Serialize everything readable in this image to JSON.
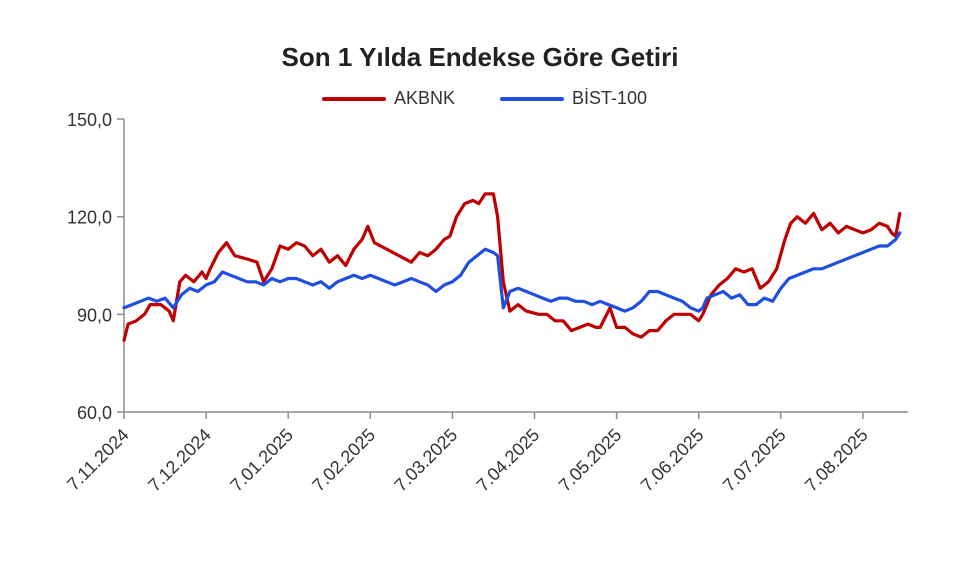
{
  "chart_data": {
    "type": "line",
    "title": "Son 1 Yılda Endekse Göre Getiri",
    "xlabel": "",
    "ylabel": "",
    "ylim": [
      60,
      150
    ],
    "yticks": [
      "150,0",
      "120,0",
      "90,0",
      "60,0"
    ],
    "ytick_values": [
      150,
      120,
      90,
      60
    ],
    "xtick_labels": [
      "7.11.2024",
      "7.12.2024",
      "7.01.2025",
      "7.02.2025",
      "7.03.2025",
      "7.04.2025",
      "7.05.2025",
      "7.06.2025",
      "7.07.2025",
      "7.08.2025"
    ],
    "x_month_range": [
      0,
      9.45
    ],
    "grid": false,
    "legend_position": "top-center",
    "series": [
      {
        "name": "AKBNK",
        "color": "#C00000",
        "points": [
          [
            0.0,
            82
          ],
          [
            0.05,
            87
          ],
          [
            0.15,
            88
          ],
          [
            0.25,
            90
          ],
          [
            0.32,
            93
          ],
          [
            0.45,
            93
          ],
          [
            0.55,
            91
          ],
          [
            0.6,
            88
          ],
          [
            0.68,
            100
          ],
          [
            0.75,
            102
          ],
          [
            0.85,
            100
          ],
          [
            0.95,
            103
          ],
          [
            1.0,
            101
          ],
          [
            1.05,
            104
          ],
          [
            1.15,
            109
          ],
          [
            1.25,
            112
          ],
          [
            1.35,
            108
          ],
          [
            1.5,
            107
          ],
          [
            1.62,
            106
          ],
          [
            1.7,
            100
          ],
          [
            1.8,
            104
          ],
          [
            1.9,
            111
          ],
          [
            2.0,
            110
          ],
          [
            2.1,
            112
          ],
          [
            2.2,
            111
          ],
          [
            2.3,
            108
          ],
          [
            2.4,
            110
          ],
          [
            2.5,
            106
          ],
          [
            2.6,
            108
          ],
          [
            2.7,
            105
          ],
          [
            2.8,
            110
          ],
          [
            2.9,
            113
          ],
          [
            2.97,
            117
          ],
          [
            3.05,
            112
          ],
          [
            3.2,
            110
          ],
          [
            3.35,
            108
          ],
          [
            3.5,
            106
          ],
          [
            3.6,
            109
          ],
          [
            3.7,
            108
          ],
          [
            3.8,
            110
          ],
          [
            3.9,
            113
          ],
          [
            3.97,
            114
          ],
          [
            4.05,
            120
          ],
          [
            4.15,
            124
          ],
          [
            4.25,
            125
          ],
          [
            4.32,
            124
          ],
          [
            4.4,
            127
          ],
          [
            4.5,
            127
          ],
          [
            4.55,
            120
          ],
          [
            4.62,
            100
          ],
          [
            4.7,
            91
          ],
          [
            4.8,
            93
          ],
          [
            4.9,
            91
          ],
          [
            5.05,
            90
          ],
          [
            5.15,
            90
          ],
          [
            5.25,
            88
          ],
          [
            5.35,
            88
          ],
          [
            5.45,
            85
          ],
          [
            5.55,
            86
          ],
          [
            5.65,
            87
          ],
          [
            5.75,
            86
          ],
          [
            5.8,
            86
          ],
          [
            5.92,
            92
          ],
          [
            6.0,
            86
          ],
          [
            6.1,
            86
          ],
          [
            6.2,
            84
          ],
          [
            6.3,
            83
          ],
          [
            6.4,
            85
          ],
          [
            6.5,
            85
          ],
          [
            6.6,
            88
          ],
          [
            6.7,
            90
          ],
          [
            6.8,
            90
          ],
          [
            6.9,
            90
          ],
          [
            6.95,
            89
          ],
          [
            7.0,
            88
          ],
          [
            7.05,
            90
          ],
          [
            7.15,
            96
          ],
          [
            7.25,
            99
          ],
          [
            7.35,
            101
          ],
          [
            7.45,
            104
          ],
          [
            7.55,
            103
          ],
          [
            7.65,
            104
          ],
          [
            7.75,
            98
          ],
          [
            7.85,
            100
          ],
          [
            7.95,
            104
          ],
          [
            8.05,
            113
          ],
          [
            8.12,
            118
          ],
          [
            8.2,
            120
          ],
          [
            8.3,
            118
          ],
          [
            8.4,
            121
          ],
          [
            8.5,
            116
          ],
          [
            8.6,
            118
          ],
          [
            8.7,
            115
          ],
          [
            8.8,
            117
          ],
          [
            8.9,
            116
          ],
          [
            9.0,
            115
          ],
          [
            9.1,
            116
          ],
          [
            9.2,
            118
          ],
          [
            9.3,
            117
          ],
          [
            9.35,
            115
          ],
          [
            9.4,
            114
          ],
          [
            9.45,
            121
          ]
        ]
      },
      {
        "name": "BİST-100",
        "color": "#1F4FE0",
        "points": [
          [
            0.0,
            92
          ],
          [
            0.1,
            93
          ],
          [
            0.2,
            94
          ],
          [
            0.3,
            95
          ],
          [
            0.4,
            94
          ],
          [
            0.5,
            95
          ],
          [
            0.6,
            92
          ],
          [
            0.7,
            96
          ],
          [
            0.8,
            98
          ],
          [
            0.9,
            97
          ],
          [
            1.0,
            99
          ],
          [
            1.1,
            100
          ],
          [
            1.2,
            103
          ],
          [
            1.3,
            102
          ],
          [
            1.4,
            101
          ],
          [
            1.5,
            100
          ],
          [
            1.6,
            100
          ],
          [
            1.7,
            99
          ],
          [
            1.8,
            101
          ],
          [
            1.9,
            100
          ],
          [
            2.0,
            101
          ],
          [
            2.1,
            101
          ],
          [
            2.2,
            100
          ],
          [
            2.3,
            99
          ],
          [
            2.4,
            100
          ],
          [
            2.5,
            98
          ],
          [
            2.6,
            100
          ],
          [
            2.7,
            101
          ],
          [
            2.8,
            102
          ],
          [
            2.9,
            101
          ],
          [
            3.0,
            102
          ],
          [
            3.1,
            101
          ],
          [
            3.2,
            100
          ],
          [
            3.3,
            99
          ],
          [
            3.4,
            100
          ],
          [
            3.5,
            101
          ],
          [
            3.6,
            100
          ],
          [
            3.7,
            99
          ],
          [
            3.8,
            97
          ],
          [
            3.9,
            99
          ],
          [
            4.0,
            100
          ],
          [
            4.1,
            102
          ],
          [
            4.2,
            106
          ],
          [
            4.3,
            108
          ],
          [
            4.4,
            110
          ],
          [
            4.5,
            109
          ],
          [
            4.55,
            108
          ],
          [
            4.62,
            92
          ],
          [
            4.7,
            97
          ],
          [
            4.8,
            98
          ],
          [
            4.9,
            97
          ],
          [
            5.0,
            96
          ],
          [
            5.1,
            95
          ],
          [
            5.2,
            94
          ],
          [
            5.3,
            95
          ],
          [
            5.4,
            95
          ],
          [
            5.5,
            94
          ],
          [
            5.6,
            94
          ],
          [
            5.7,
            93
          ],
          [
            5.8,
            94
          ],
          [
            5.9,
            93
          ],
          [
            6.0,
            92
          ],
          [
            6.1,
            91
          ],
          [
            6.2,
            92
          ],
          [
            6.3,
            94
          ],
          [
            6.4,
            97
          ],
          [
            6.5,
            97
          ],
          [
            6.6,
            96
          ],
          [
            6.7,
            95
          ],
          [
            6.8,
            94
          ],
          [
            6.9,
            92
          ],
          [
            7.0,
            91
          ],
          [
            7.05,
            92
          ],
          [
            7.1,
            95
          ],
          [
            7.2,
            96
          ],
          [
            7.3,
            97
          ],
          [
            7.4,
            95
          ],
          [
            7.5,
            96
          ],
          [
            7.6,
            93
          ],
          [
            7.7,
            93
          ],
          [
            7.8,
            95
          ],
          [
            7.9,
            94
          ],
          [
            8.0,
            98
          ],
          [
            8.1,
            101
          ],
          [
            8.2,
            102
          ],
          [
            8.3,
            103
          ],
          [
            8.4,
            104
          ],
          [
            8.5,
            104
          ],
          [
            8.6,
            105
          ],
          [
            8.7,
            106
          ],
          [
            8.8,
            107
          ],
          [
            8.9,
            108
          ],
          [
            9.0,
            109
          ],
          [
            9.1,
            110
          ],
          [
            9.2,
            111
          ],
          [
            9.3,
            111
          ],
          [
            9.4,
            113
          ],
          [
            9.45,
            115
          ]
        ]
      }
    ]
  }
}
